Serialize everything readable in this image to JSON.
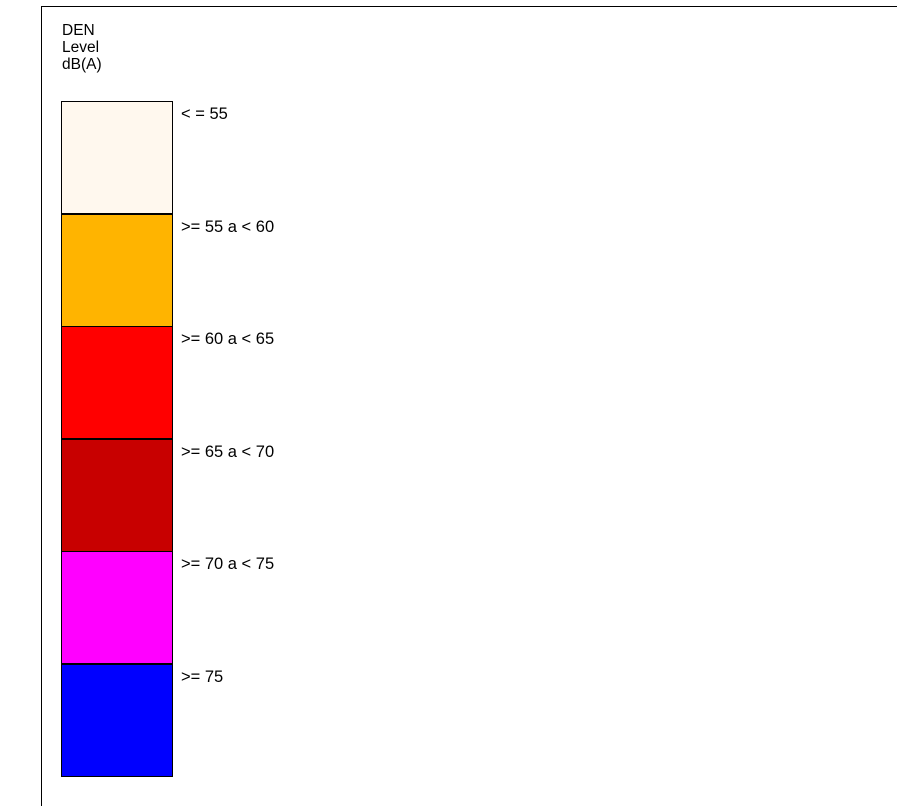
{
  "legend": {
    "title_lines": [
      "DEN",
      "Level",
      "dB(A)"
    ],
    "items": [
      {
        "label": "< = 55",
        "color": "#fff8ee"
      },
      {
        "label": ">= 55 a < 60",
        "color": "#ffb400"
      },
      {
        "label": ">= 60 a < 65",
        "color": "#ff0000"
      },
      {
        "label": ">= 65 a < 70",
        "color": "#c80000"
      },
      {
        "label": ">= 70 a < 75",
        "color": "#ff00ff"
      },
      {
        "label": ">= 75",
        "color": "#0000ff"
      }
    ]
  }
}
